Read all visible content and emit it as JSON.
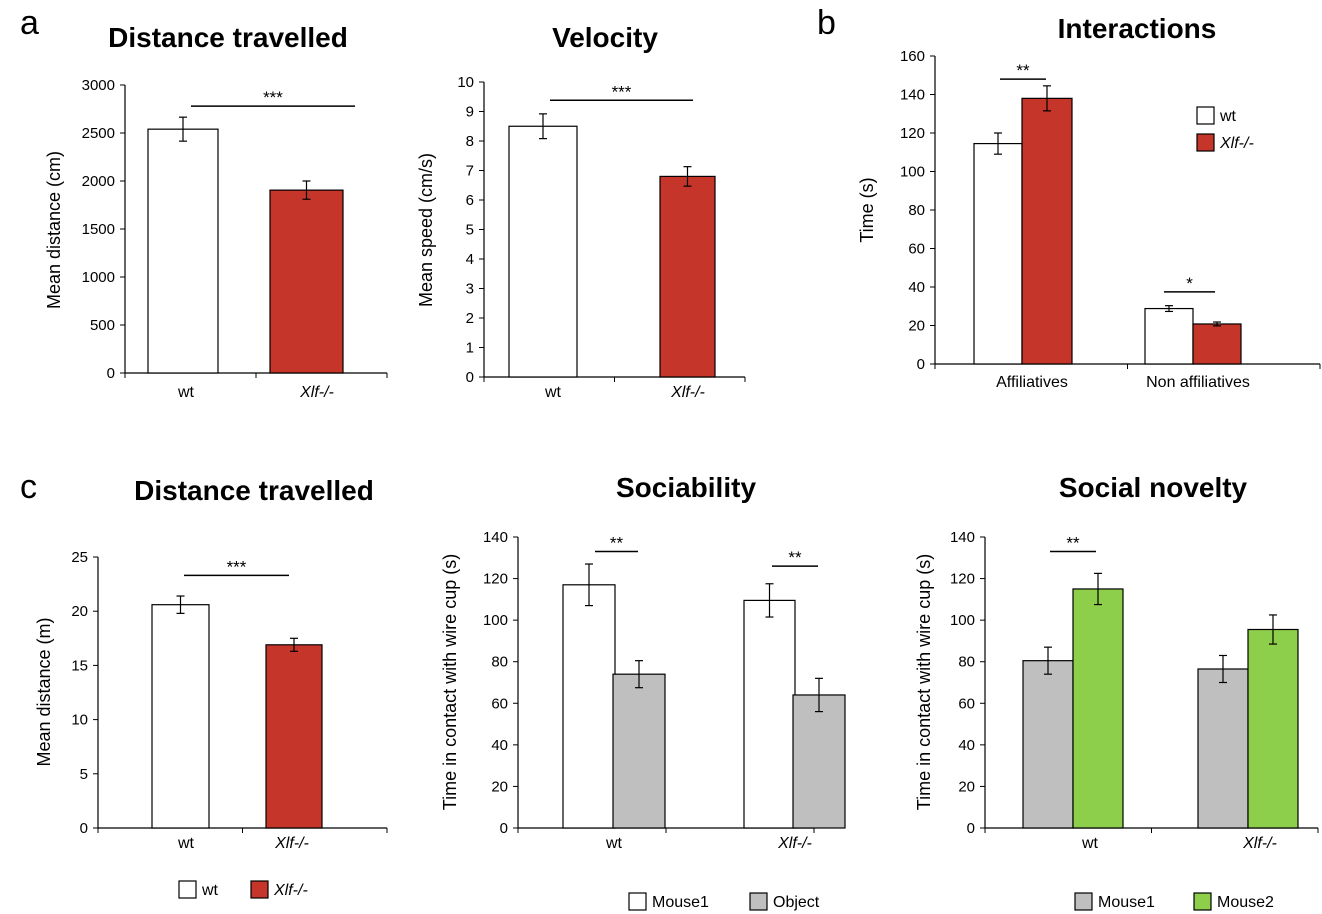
{
  "panel_letters": [
    "a",
    "b",
    "c"
  ],
  "colors": {
    "wt": "#ffffff",
    "xlf": "#c5352a",
    "object": "#bfbfbf",
    "mouse1_nov": "#bfbfbf",
    "mouse2": "#8dce4b",
    "stroke": "#000000"
  },
  "chart_data": [
    {
      "type": "bar",
      "panel": "a",
      "title": "Distance travelled",
      "ylabel": "Mean distance (cm)",
      "xlabel": "",
      "ylim": [
        0,
        3000
      ],
      "yticks": [
        0,
        500,
        1000,
        1500,
        2000,
        2500,
        3000
      ],
      "categories": [
        "wt",
        "Xlf-/-"
      ],
      "italic_categories": [
        false,
        true
      ],
      "series": [
        {
          "values": [
            2540,
            1905
          ],
          "errors": [
            125,
            95
          ],
          "colors": [
            "wt",
            "xlf"
          ]
        }
      ],
      "significance": [
        {
          "label": "***"
        }
      ]
    },
    {
      "type": "bar",
      "panel": "a",
      "title": "Velocity",
      "ylabel": "Mean speed (cm/s)",
      "xlabel": "",
      "ylim": [
        0,
        10
      ],
      "yticks": [
        0,
        1,
        2,
        3,
        4,
        5,
        6,
        7,
        8,
        9,
        10
      ],
      "categories": [
        "wt",
        "Xlf-/-"
      ],
      "italic_categories": [
        false,
        true
      ],
      "series": [
        {
          "values": [
            8.5,
            6.8
          ],
          "errors": [
            0.42,
            0.33
          ],
          "colors": [
            "wt",
            "xlf"
          ]
        }
      ],
      "significance": [
        {
          "label": "***"
        }
      ]
    },
    {
      "type": "bar",
      "panel": "b",
      "title": "Interactions",
      "ylabel": "Time (s)",
      "xlabel": "",
      "ylim": [
        0,
        160
      ],
      "yticks": [
        0,
        20,
        40,
        60,
        80,
        100,
        120,
        140,
        160
      ],
      "categories": [
        "Affiliatives",
        "Non affiliatives"
      ],
      "italic_categories": [
        false,
        false
      ],
      "series": [
        {
          "name": "wt",
          "values": [
            114.5,
            28.8
          ],
          "errors": [
            5.5,
            1.5
          ],
          "color": "wt"
        },
        {
          "name": "Xlf-/-",
          "values": [
            138,
            20.8
          ],
          "errors": [
            6.5,
            1.0
          ],
          "color": "xlf"
        }
      ],
      "significance": [
        {
          "label": "**"
        },
        {
          "label": "*"
        }
      ],
      "legend": {
        "placement": "top-right",
        "italic": [
          false,
          true
        ]
      }
    },
    {
      "type": "bar",
      "panel": "c",
      "title": "Distance travelled",
      "ylabel": "Mean distance (m)",
      "xlabel": "",
      "ylim": [
        0,
        25
      ],
      "yticks": [
        0,
        5,
        10,
        15,
        20,
        25
      ],
      "categories": [
        "wt",
        "Xlf-/-"
      ],
      "italic_categories": [
        false,
        true
      ],
      "series": [
        {
          "values": [
            20.6,
            16.9
          ],
          "errors": [
            0.8,
            0.6
          ],
          "colors": [
            "wt",
            "xlf"
          ]
        }
      ],
      "significance": [
        {
          "label": "***"
        }
      ],
      "legend": {
        "placement": "bottom",
        "entries": [
          "wt",
          "Xlf-/-"
        ],
        "italic": [
          false,
          true
        ]
      }
    },
    {
      "type": "bar",
      "panel": "c",
      "title": "Sociability",
      "ylabel": "Time in contact with wire cup (s)",
      "xlabel": "",
      "ylim": [
        0,
        140
      ],
      "yticks": [
        0,
        20,
        40,
        60,
        80,
        100,
        120,
        140
      ],
      "categories": [
        "wt",
        "Xlf-/-"
      ],
      "italic_categories": [
        false,
        true
      ],
      "series": [
        {
          "name": "Mouse1",
          "values": [
            117,
            109.5
          ],
          "errors": [
            10,
            8
          ],
          "color": "wt"
        },
        {
          "name": "Object",
          "values": [
            74,
            64
          ],
          "errors": [
            6.5,
            8
          ],
          "color": "object"
        }
      ],
      "significance": [
        {
          "label": "**"
        },
        {
          "label": "**"
        }
      ],
      "legend": {
        "placement": "bottom",
        "italic": [
          false,
          false
        ]
      }
    },
    {
      "type": "bar",
      "panel": "c",
      "title": "Social novelty",
      "ylabel": "Time in contact with wire cup (s)",
      "xlabel": "",
      "ylim": [
        0,
        140
      ],
      "yticks": [
        0,
        20,
        40,
        60,
        80,
        100,
        120,
        140
      ],
      "categories": [
        "wt",
        "Xlf-/-"
      ],
      "italic_categories": [
        false,
        true
      ],
      "series": [
        {
          "name": "Mouse1",
          "values": [
            80.5,
            76.5
          ],
          "errors": [
            6.5,
            6.5
          ],
          "color": "mouse1_nov"
        },
        {
          "name": "Mouse2",
          "values": [
            115,
            95.5
          ],
          "errors": [
            7.5,
            7
          ],
          "color": "mouse2"
        }
      ],
      "significance": [
        {
          "label": "**"
        }
      ],
      "legend": {
        "placement": "bottom",
        "italic": [
          false,
          false
        ]
      }
    }
  ]
}
